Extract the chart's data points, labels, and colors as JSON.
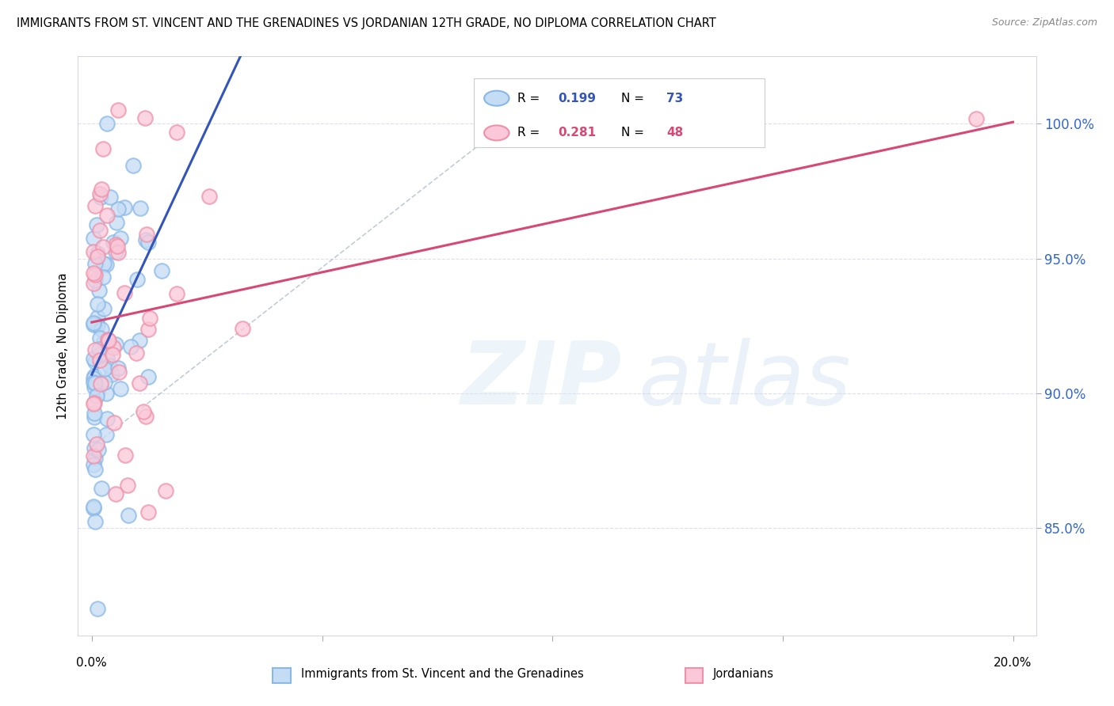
{
  "title": "IMMIGRANTS FROM ST. VINCENT AND THE GRENADINES VS JORDANIAN 12TH GRADE, NO DIPLOMA CORRELATION CHART",
  "source": "Source: ZipAtlas.com",
  "ylabel": "12th Grade, No Diploma",
  "xlim": [
    -0.003,
    0.205
  ],
  "ylim": [
    81.0,
    102.5
  ],
  "yticks": [
    85.0,
    90.0,
    95.0,
    100.0
  ],
  "xtick_positions": [
    0.0,
    0.05,
    0.1,
    0.15,
    0.2
  ],
  "blue_R": 0.199,
  "blue_N": 73,
  "pink_R": 0.281,
  "pink_N": 48,
  "blue_label": "Immigrants from St. Vincent and the Grenadines",
  "pink_label": "Jordanians",
  "blue_face": "#C5DCF5",
  "blue_edge": "#88B8E8",
  "blue_line": "#3355BB",
  "pink_face": "#FAC8D8",
  "pink_edge": "#F090A8",
  "pink_line": "#D84875",
  "grid_color": "#DDDDEE",
  "seed_blue": 42,
  "seed_pink": 99
}
